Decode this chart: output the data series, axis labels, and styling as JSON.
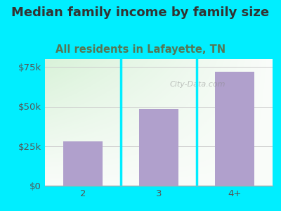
{
  "title": "Median family income by family size",
  "subtitle": "All residents in Lafayette, TN",
  "categories": [
    "2",
    "3",
    "4+"
  ],
  "values": [
    28000,
    48500,
    72000
  ],
  "bar_color": "#b0a0cc",
  "background_outer": "#00eeff",
  "title_color": "#333333",
  "subtitle_color": "#557755",
  "tick_label_color": "#555555",
  "ytick_labels": [
    "$0",
    "$25k",
    "$50k",
    "$75k"
  ],
  "ytick_values": [
    0,
    25000,
    50000,
    75000
  ],
  "ylim": [
    0,
    80000
  ],
  "title_fontsize": 13,
  "subtitle_fontsize": 10.5,
  "tick_fontsize": 9.5,
  "watermark": "City-Data.com"
}
